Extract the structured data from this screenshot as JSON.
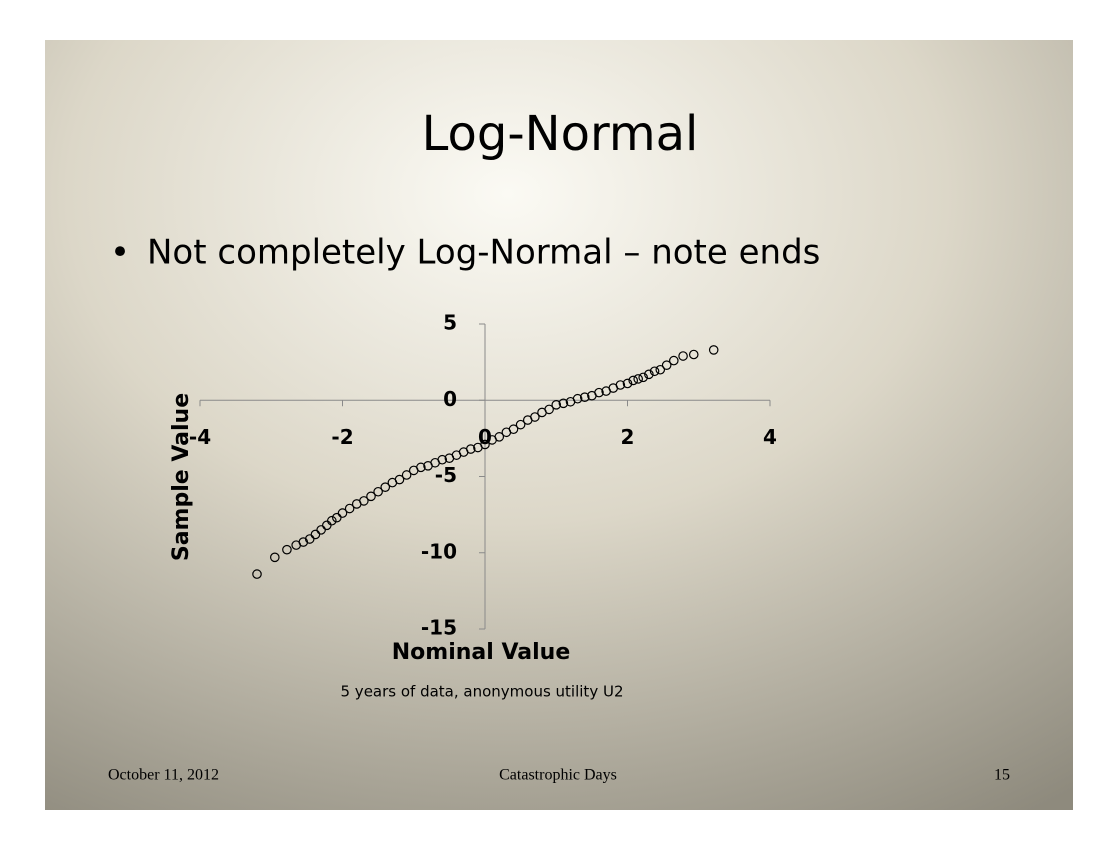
{
  "slide": {
    "title": "Log-Normal",
    "bullet": "Not completely Log-Normal – note ends",
    "caption": "5 years of data, anonymous utility U2",
    "footer": {
      "left": "October 11, 2012",
      "center": "Catastrophic Days",
      "right": "15"
    }
  },
  "chart_data": {
    "type": "scatter",
    "x_label": "Nominal Value",
    "y_label": "Sample Value",
    "marker_color": "#000000",
    "xlim": [
      -4,
      4
    ],
    "ylim": [
      -15,
      5
    ],
    "xticks": [
      -4,
      -2,
      0,
      2,
      4
    ],
    "yticks": [
      5,
      0,
      -5,
      -10,
      -15
    ],
    "x": [
      -3.2,
      -2.95,
      -2.78,
      -2.65,
      -2.55,
      -2.46,
      -2.38,
      -2.3,
      -2.22,
      -2.15,
      -2.08,
      -2.0,
      -1.9,
      -1.8,
      -1.7,
      -1.6,
      -1.5,
      -1.4,
      -1.3,
      -1.2,
      -1.1,
      -1.0,
      -0.9,
      -0.8,
      -0.7,
      -0.6,
      -0.5,
      -0.4,
      -0.3,
      -0.2,
      -0.1,
      0,
      0.1,
      0.2,
      0.3,
      0.4,
      0.5,
      0.6,
      0.7,
      0.8,
      0.9,
      1.0,
      1.1,
      1.2,
      1.3,
      1.4,
      1.5,
      1.6,
      1.7,
      1.8,
      1.9,
      2.0,
      2.08,
      2.15,
      2.22,
      2.3,
      2.38,
      2.46,
      2.55,
      2.65,
      2.78,
      2.93,
      3.21
    ],
    "y": [
      -11.4,
      -10.3,
      -9.8,
      -9.5,
      -9.3,
      -9.1,
      -8.8,
      -8.5,
      -8.2,
      -7.9,
      -7.7,
      -7.4,
      -7.1,
      -6.8,
      -6.6,
      -6.3,
      -6.0,
      -5.7,
      -5.4,
      -5.2,
      -4.9,
      -4.6,
      -4.4,
      -4.3,
      -4.1,
      -3.9,
      -3.8,
      -3.6,
      -3.4,
      -3.2,
      -3.1,
      -2.9,
      -2.6,
      -2.4,
      -2.1,
      -1.9,
      -1.6,
      -1.3,
      -1.1,
      -0.8,
      -0.6,
      -0.3,
      -0.2,
      -0.1,
      0.1,
      0.2,
      0.3,
      0.5,
      0.6,
      0.8,
      1.0,
      1.1,
      1.3,
      1.4,
      1.5,
      1.7,
      1.9,
      2.0,
      2.3,
      2.6,
      2.9,
      3.0,
      3.3
    ]
  }
}
